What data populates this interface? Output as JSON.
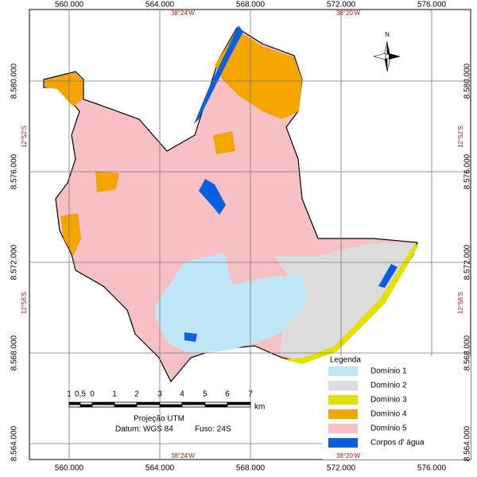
{
  "grid": {
    "eastings": [
      "560.000",
      "564.000",
      "568.000",
      "572.000",
      "576.000"
    ],
    "northings": [
      "8.580.000",
      "8.576.000",
      "8.572.000",
      "8.568.000",
      "8.564.000"
    ],
    "longitudes": [
      "38°24'W",
      "38°20'W"
    ],
    "latitudes": [
      "12°52'S",
      "12°56'S"
    ]
  },
  "north": "N",
  "legend": {
    "title": "Legenda",
    "items": [
      {
        "label": "Domínio 1",
        "color": "#bfe6f7"
      },
      {
        "label": "Domínio 2",
        "color": "#dcdcdc"
      },
      {
        "label": "Domínio 3",
        "color": "#e1e000"
      },
      {
        "label": "Domínio 4",
        "color": "#f5a500"
      },
      {
        "label": "Domínio 5",
        "color": "#f7c0c4"
      },
      {
        "label": "Corpos d' água",
        "color": "#0a5fe0"
      }
    ]
  },
  "scale_bar": {
    "labels": [
      "1",
      "0,5",
      "0",
      "1",
      "2",
      "3",
      "4",
      "5",
      "6",
      "7"
    ],
    "unit": "km"
  },
  "projection": {
    "title": "Projeção UTM",
    "datum": "Datum: WGS 84",
    "zone": "Fuso: 24S"
  }
}
